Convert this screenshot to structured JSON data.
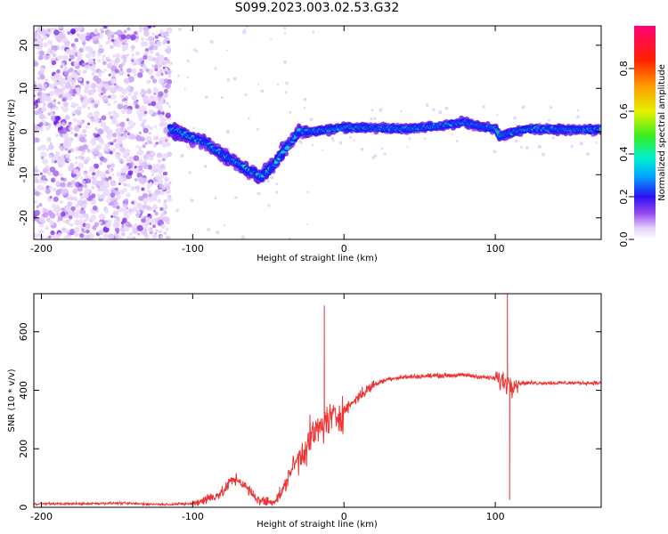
{
  "title": "S099.2023.003.02.53.G32",
  "chart_data": [
    {
      "type": "heatmap",
      "xlabel": "Height of straight line (km)",
      "ylabel": "Frequency (Hz)",
      "xlim": [
        -205,
        170
      ],
      "ylim": [
        -25,
        24.5
      ],
      "xticks": [
        -200,
        -100,
        0,
        100
      ],
      "yticks": [
        -20,
        -10,
        0,
        10,
        20
      ],
      "grid": false,
      "colorbar": {
        "label": "Normalized spectral amplitude",
        "range": [
          0,
          1
        ],
        "ticks": [
          0.0,
          0.2,
          0.4,
          0.6,
          0.8
        ],
        "colormap": "rainbow"
      },
      "ridge": {
        "x": [
          -115,
          -110,
          -100,
          -90,
          -80,
          -70,
          -60,
          -55,
          -50,
          -45,
          -40,
          -35,
          -30,
          -20,
          -10,
          0,
          20,
          40,
          60,
          80,
          90,
          100,
          103,
          120,
          140,
          170
        ],
        "y": [
          0.5,
          0,
          -1.5,
          -3,
          -5.5,
          -7.5,
          -9.5,
          -10.5,
          -9,
          -7,
          -4.5,
          -2.5,
          0,
          0,
          0.5,
          1,
          0.8,
          0.6,
          1.2,
          2.2,
          1.2,
          0.6,
          -1,
          0.6,
          0.5,
          0.4
        ]
      },
      "noise_x_range": [
        -205,
        -115
      ]
    },
    {
      "type": "line",
      "xlabel": "Height of straight line (km)",
      "ylabel": "SNR (10 * v/v)",
      "xlim": [
        -205,
        170
      ],
      "ylim": [
        0,
        730
      ],
      "xticks": [
        -200,
        -100,
        0,
        100
      ],
      "yticks": [
        0,
        200,
        400,
        600
      ],
      "color": "#ee3333",
      "grid": false,
      "series": [
        {
          "x": [
            -205,
            -180,
            -150,
            -120,
            -100,
            -90,
            -80,
            -75,
            -70,
            -65,
            -60,
            -55,
            -50,
            -45,
            -40,
            -35,
            -30,
            -25,
            -20,
            -15,
            -10,
            -5,
            0,
            10,
            20,
            30,
            40,
            60,
            80,
            100,
            105,
            110,
            115,
            130,
            150,
            170
          ],
          "y": [
            12,
            12,
            14,
            10,
            12,
            30,
            50,
            90,
            95,
            70,
            40,
            22,
            18,
            25,
            60,
            130,
            170,
            210,
            250,
            275,
            300,
            310,
            330,
            380,
            420,
            440,
            445,
            450,
            452,
            440,
            430,
            425,
            425,
            425,
            425,
            425
          ]
        }
      ],
      "annotations": [
        {
          "x": -13,
          "peak": 690
        },
        {
          "x": 108,
          "peak": 730
        },
        {
          "x": 109.5,
          "trough": 25
        }
      ]
    }
  ]
}
